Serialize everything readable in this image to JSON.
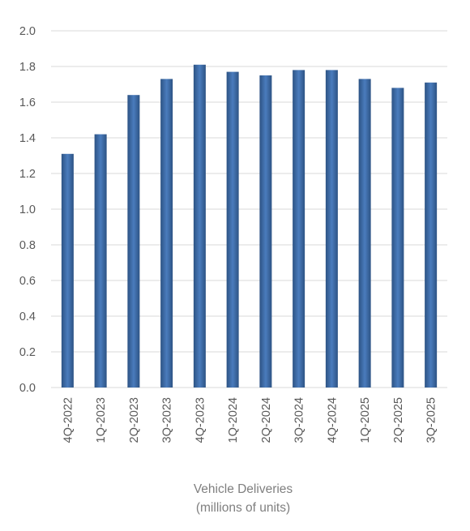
{
  "chart_data": {
    "type": "bar",
    "title": "",
    "xlabel": "Vehicle Deliveries",
    "xlabel_sub": "(millions of units)",
    "ylabel": "",
    "categories": [
      "4Q-2022",
      "1Q-2023",
      "2Q-2023",
      "3Q-2023",
      "4Q-2023",
      "1Q-2024",
      "2Q-2024",
      "3Q-2024",
      "4Q-2024",
      "1Q-2025",
      "2Q-2025",
      "3Q-2025"
    ],
    "values": [
      1.31,
      1.42,
      1.64,
      1.73,
      1.81,
      1.77,
      1.75,
      1.78,
      1.78,
      1.73,
      1.68,
      1.71
    ],
    "ylim": [
      0,
      2.0
    ],
    "yticks": [
      "0.0",
      "0.2",
      "0.4",
      "0.6",
      "0.8",
      "1.0",
      "1.2",
      "1.4",
      "1.6",
      "1.8",
      "2.0"
    ],
    "grid": true,
    "legend": "none",
    "colors": {
      "bar_edge": "#2d5384",
      "bar_center": "#4a7cbd",
      "grid": "#d9d9d9",
      "tick_text": "#595959",
      "label_text": "#7f7f7f"
    }
  }
}
